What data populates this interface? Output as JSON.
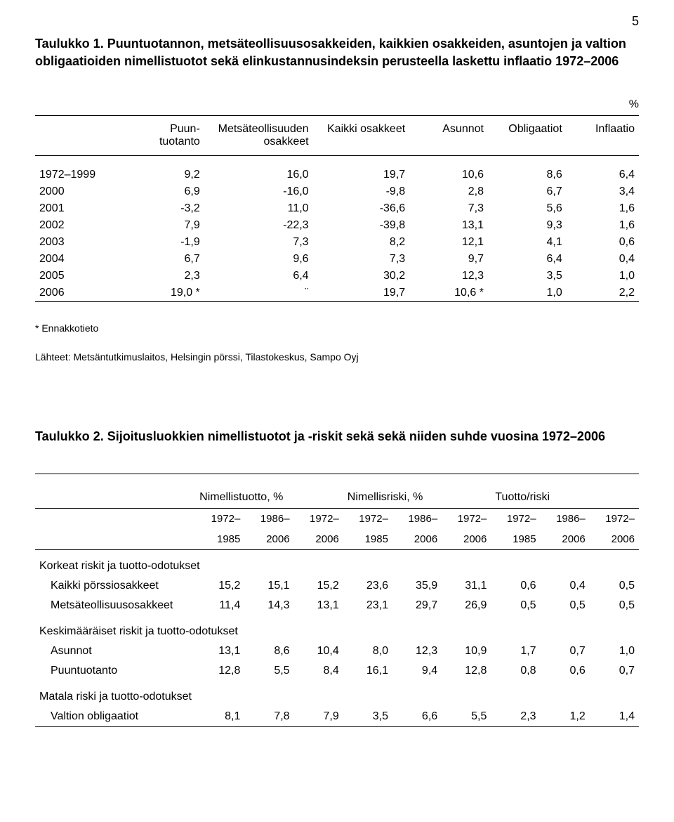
{
  "page_number": "5",
  "table1": {
    "label": "Taulukko 1.",
    "desc": "Puuntuotannon, metsäteollisuusosakkeiden, kaikkien osakkeiden, asuntojen ja valtion obligaatioiden nimellistuotot sekä elinkustannusindeksin perusteella laskettu inflaatio 1972–2006",
    "unit": "%",
    "headers": {
      "c1_a": "Puun-",
      "c1_b": "tuotanto",
      "c2_a": "Metsäteollisuuden",
      "c2_b": "osakkeet",
      "c3": "Kaikki osakkeet",
      "c4": "Asunnot",
      "c5": "Obligaatiot",
      "c6": "Inflaatio"
    },
    "rows": [
      {
        "y": "1972–1999",
        "v": [
          "9,2",
          "16,0",
          "19,7",
          "10,6",
          "8,6",
          "6,4"
        ]
      },
      {
        "y": "2000",
        "v": [
          "6,9",
          "-16,0",
          "-9,8",
          "2,8",
          "6,7",
          "3,4"
        ]
      },
      {
        "y": "2001",
        "v": [
          "-3,2",
          "11,0",
          "-36,6",
          "7,3",
          "5,6",
          "1,6"
        ]
      },
      {
        "y": "2002",
        "v": [
          "7,9",
          "-22,3",
          "-39,8",
          "13,1",
          "9,3",
          "1,6"
        ]
      },
      {
        "y": "2003",
        "v": [
          "-1,9",
          "7,3",
          "8,2",
          "12,1",
          "4,1",
          "0,6"
        ]
      },
      {
        "y": "2004",
        "v": [
          "6,7",
          "9,6",
          "7,3",
          "9,7",
          "6,4",
          "0,4"
        ]
      },
      {
        "y": "2005",
        "v": [
          "2,3",
          "6,4",
          "30,2",
          "12,3",
          "3,5",
          "1,0"
        ]
      },
      {
        "y": "2006",
        "v": [
          "19,0 *",
          "¨",
          "19,7",
          "10,6 *",
          "1,0",
          "2,2"
        ]
      }
    ],
    "footnote1": "* Ennakkotieto",
    "footnote2": "Lähteet: Metsäntutkimuslaitos, Helsingin pörssi, Tilastokeskus, Sampo Oyj"
  },
  "table2": {
    "label": "Taulukko 2.",
    "desc": "Sijoitusluokkien nimellistuotot ja -riskit sekä sekä niiden suhde vuosina 1972–2006",
    "group_headers": [
      "Nimellistuotto, %",
      "Nimellisriski, %",
      "Tuotto/riski"
    ],
    "period_top": [
      "1972–",
      "1986–",
      "1972–",
      "1972–",
      "1986–",
      "1972–",
      "1972–",
      "1986–",
      "1972–"
    ],
    "period_bottom": [
      "1985",
      "2006",
      "2006",
      "1985",
      "2006",
      "2006",
      "1985",
      "2006",
      "2006"
    ],
    "sections": [
      {
        "title": "Korkeat riskit ja tuotto-odotukset",
        "rows": [
          {
            "label": "Kaikki pörssiosakkeet",
            "v": [
              "15,2",
              "15,1",
              "15,2",
              "23,6",
              "35,9",
              "31,1",
              "0,6",
              "0,4",
              "0,5"
            ]
          },
          {
            "label": "Metsäteollisuusosakkeet",
            "v": [
              "11,4",
              "14,3",
              "13,1",
              "23,1",
              "29,7",
              "26,9",
              "0,5",
              "0,5",
              "0,5"
            ]
          }
        ]
      },
      {
        "title": "Keskimääräiset riskit ja tuotto-odotukset",
        "rows": [
          {
            "label": "Asunnot",
            "v": [
              "13,1",
              "8,6",
              "10,4",
              "8,0",
              "12,3",
              "10,9",
              "1,7",
              "0,7",
              "1,0"
            ]
          },
          {
            "label": "Puuntuotanto",
            "v": [
              "12,8",
              "5,5",
              "8,4",
              "16,1",
              "9,4",
              "12,8",
              "0,8",
              "0,6",
              "0,7"
            ]
          }
        ]
      },
      {
        "title": "Matala riski ja tuotto-odotukset",
        "rows": [
          {
            "label": "Valtion obligaatiot",
            "v": [
              "8,1",
              "7,8",
              "7,9",
              "3,5",
              "6,6",
              "5,5",
              "2,3",
              "1,2",
              "1,4"
            ]
          }
        ]
      }
    ]
  }
}
